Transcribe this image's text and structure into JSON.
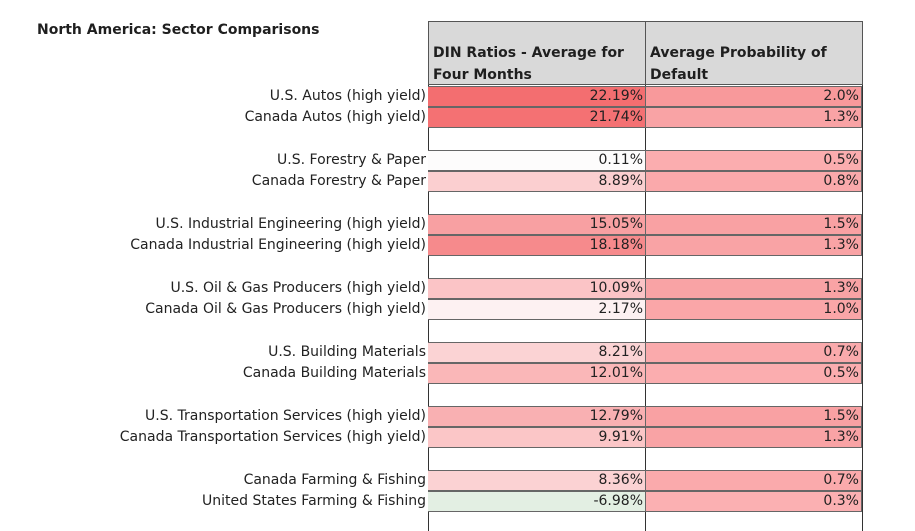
{
  "title": "North America: Sector Comparisons",
  "headers": {
    "din_line1": "DIN Ratios - Average for",
    "din_line2": "Four Months",
    "pd_line1": "Average Probability of",
    "pd_line2": "Default"
  },
  "rows": [
    {
      "label": "U.S. Autos (high yield)",
      "din": "22.19%",
      "pd": "2.0%",
      "din_color": "#f36e70",
      "pd_color": "#f8999b"
    },
    {
      "label": "Canada Autos (high yield)",
      "din": "21.74%",
      "pd": "1.3%",
      "din_color": "#f47173",
      "pd_color": "#f9a3a5"
    },
    {
      "label": "U.S. Forestry & Paper",
      "din": "0.11%",
      "pd": "0.5%",
      "din_color": "#fdfcfc",
      "pd_color": "#fbadaf"
    },
    {
      "label": "Canada Forestry & Paper",
      "din": "8.89%",
      "pd": "0.8%",
      "din_color": "#fbcfd0",
      "pd_color": "#faa9ab"
    },
    {
      "label": "U.S. Industrial Engineering (high yield)",
      "din": "15.05%",
      "pd": "1.5%",
      "din_color": "#f8a0a2",
      "pd_color": "#f9a1a3"
    },
    {
      "label": "Canada Industrial Engineering (high yield)",
      "din": "18.18%",
      "pd": "1.3%",
      "din_color": "#f68a8c",
      "pd_color": "#f9a3a5"
    },
    {
      "label": "U.S. Oil & Gas Producers (high yield)",
      "din": "10.09%",
      "pd": "1.3%",
      "din_color": "#fbc4c6",
      "pd_color": "#f9a3a5"
    },
    {
      "label": "Canada Oil & Gas Producers (high yield)",
      "din": "2.17%",
      "pd": "1.0%",
      "din_color": "#fdf1f2",
      "pd_color": "#faa6a8"
    },
    {
      "label": "U.S. Building Materials",
      "din": "8.21%",
      "pd": "0.7%",
      "din_color": "#fbd3d4",
      "pd_color": "#faaaac"
    },
    {
      "label": "Canada Building Materials",
      "din": "12.01%",
      "pd": "0.5%",
      "din_color": "#fab7b8",
      "pd_color": "#fbadaf"
    },
    {
      "label": "U.S. Transportation Services (high yield)",
      "din": "12.79%",
      "pd": "1.5%",
      "din_color": "#f9b0b2",
      "pd_color": "#f9a1a3"
    },
    {
      "label": "Canada Transportation Services (high yield)",
      "din": "9.91%",
      "pd": "1.3%",
      "din_color": "#fbc6c7",
      "pd_color": "#f9a3a5"
    },
    {
      "label": "Canada Farming & Fishing",
      "din": "8.36%",
      "pd": "0.7%",
      "din_color": "#fbd2d3",
      "pd_color": "#faaaac"
    },
    {
      "label": "United States Farming & Fishing",
      "din": "-6.98%",
      "pd": "0.3%",
      "din_color": "#e3efe3",
      "pd_color": "#fbb0b2"
    }
  ]
}
